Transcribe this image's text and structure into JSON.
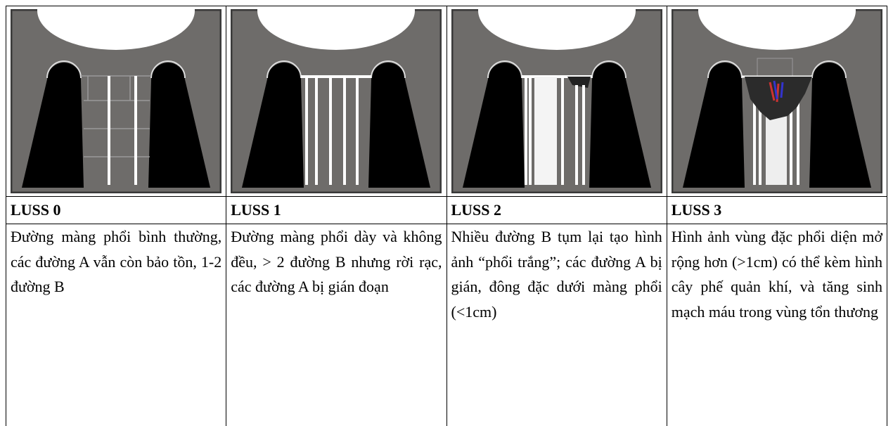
{
  "table": {
    "columns": [
      {
        "title": "LUSS 0",
        "description": "Đường màng phổi bình thường, các đường A vẫn còn bảo tồn, 1-2 đường B"
      },
      {
        "title": "LUSS 1",
        "description": "Đường màng phổi dày và không đều, > 2 đường B nhưng rời rạc, các đường A bị gián đoạn"
      },
      {
        "title": "LUSS 2",
        "description": "Nhiều đường B tụm lại tạo hình ảnh “phổi trắng”; các đường A bị gián, đông đặc dưới màng phổi (<1cm)"
      },
      {
        "title": "LUSS 3",
        "description": "Hình ảnh vùng đặc phổi diện mở rộng hơn (>1cm) có thể kèm hình cây phế quản khí, và tăng sinh mạch máu trong vùng tổn thương"
      }
    ]
  }
}
